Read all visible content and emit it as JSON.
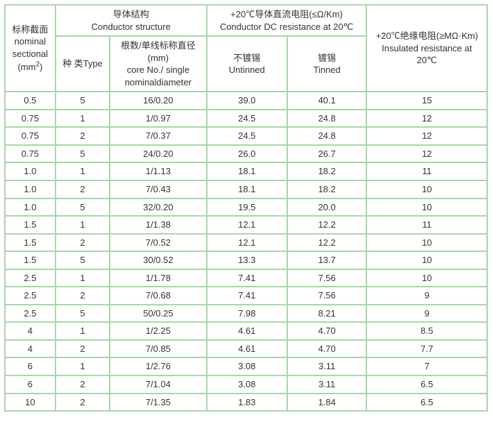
{
  "table": {
    "border_color": "#a7d7a7",
    "background_color": "#ffffff",
    "text_color": "#333333",
    "font_size_header": 13,
    "font_size_body": 13,
    "columns": {
      "nominal": {
        "cn": "标称截面",
        "en": "nominal sectional",
        "unit_html": "(mm²)"
      },
      "conductor_structure": {
        "cn": "导体结构",
        "en": "Conductor structure"
      },
      "type": {
        "cn": "种 类",
        "en": "Type"
      },
      "core": {
        "cn": "根数/单线标称直径",
        "unit": "(mm)",
        "en": "core No./ single nominaldiameter"
      },
      "dc_resistance": {
        "cn": "+20℃导体直流电阻(≤Ω/Km)",
        "en": "Conductor DC resistance at 20℃"
      },
      "untinned": {
        "cn": "不镀锡",
        "en": "Untinned"
      },
      "tinned": {
        "cn": "镀锡",
        "en": "Tinned"
      },
      "insulated": {
        "cn": "+20℃绝缘电阻(≥MΩ·Km)",
        "en": "Insulated resistance at 20℃"
      }
    },
    "rows": [
      {
        "nominal": "0.5",
        "type": "5",
        "core": "16/0.20",
        "untinned": "39.0",
        "tinned": "40.1",
        "insulated": "15"
      },
      {
        "nominal": "0.75",
        "type": "1",
        "core": "1/0.97",
        "untinned": "24.5",
        "tinned": "24.8",
        "insulated": "12"
      },
      {
        "nominal": "0.75",
        "type": "2",
        "core": "7/0.37",
        "untinned": "24.5",
        "tinned": "24.8",
        "insulated": "12"
      },
      {
        "nominal": "0.75",
        "type": "5",
        "core": "24/0.20",
        "untinned": "26.0",
        "tinned": "26.7",
        "insulated": "12"
      },
      {
        "nominal": "1.0",
        "type": "1",
        "core": "1/1.13",
        "untinned": "18.1",
        "tinned": "18.2",
        "insulated": "11"
      },
      {
        "nominal": "1.0",
        "type": "2",
        "core": "7/0.43",
        "untinned": "18.1",
        "tinned": "18.2",
        "insulated": "10"
      },
      {
        "nominal": "1.0",
        "type": "5",
        "core": "32/0.20",
        "untinned": "19.5",
        "tinned": "20.0",
        "insulated": "10"
      },
      {
        "nominal": "1.5",
        "type": "1",
        "core": "1/1.38",
        "untinned": "12.1",
        "tinned": "12.2",
        "insulated": "11"
      },
      {
        "nominal": "1.5",
        "type": "2",
        "core": "7/0.52",
        "untinned": "12.1",
        "tinned": "12.2",
        "insulated": "10"
      },
      {
        "nominal": "1.5",
        "type": "5",
        "core": "30/0.52",
        "untinned": "13.3",
        "tinned": "13.7",
        "insulated": "10"
      },
      {
        "nominal": "2.5",
        "type": "1",
        "core": "1/1.78",
        "untinned": "7.41",
        "tinned": "7.56",
        "insulated": "10"
      },
      {
        "nominal": "2.5",
        "type": "2",
        "core": "7/0.68",
        "untinned": "7.41",
        "tinned": "7.56",
        "insulated": "9"
      },
      {
        "nominal": "2.5",
        "type": "5",
        "core": "50/0.25",
        "untinned": "7.98",
        "tinned": "8.21",
        "insulated": "9"
      },
      {
        "nominal": "4",
        "type": "1",
        "core": "1/2.25",
        "untinned": "4.61",
        "tinned": "4.70",
        "insulated": "8.5"
      },
      {
        "nominal": "4",
        "type": "2",
        "core": "7/0.85",
        "untinned": "4.61",
        "tinned": "4.70",
        "insulated": "7.7"
      },
      {
        "nominal": "6",
        "type": "1",
        "core": "1/2.76",
        "untinned": "3.08",
        "tinned": "3.11",
        "insulated": "7"
      },
      {
        "nominal": "6",
        "type": "2",
        "core": "7/1.04",
        "untinned": "3.08",
        "tinned": "3.11",
        "insulated": "6.5"
      },
      {
        "nominal": "10",
        "type": "2",
        "core": "7/1.35",
        "untinned": "1.83",
        "tinned": "1.84",
        "insulated": "6.5"
      }
    ]
  }
}
